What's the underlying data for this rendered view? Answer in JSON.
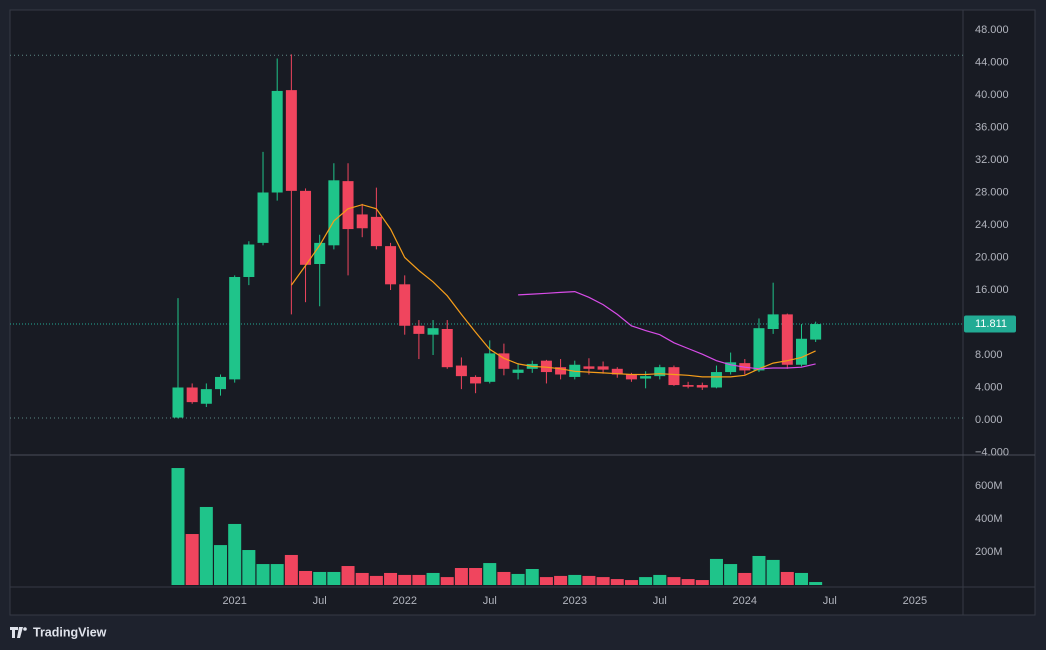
{
  "chart_data": [
    {
      "type": "candlestick",
      "categories": [
        null,
        null,
        null,
        null,
        "2021",
        null,
        null,
        null,
        null,
        null,
        "Jul",
        null,
        null,
        null,
        null,
        null,
        "2022",
        null,
        null,
        null,
        null,
        null,
        "Jul",
        null,
        null,
        null,
        null,
        null,
        "2023",
        null,
        null,
        null,
        null,
        null,
        "Jul",
        null,
        null,
        null,
        null,
        null,
        "2024",
        null,
        null,
        null,
        null,
        null,
        "Jul",
        null,
        null,
        null,
        null,
        null,
        "2025"
      ],
      "open": [
        0.3,
        4.0,
        2.0,
        3.8,
        5.0,
        17.6,
        21.8,
        28.0,
        40.6,
        28.2,
        19.2,
        21.5,
        29.4,
        25.3,
        25.0,
        21.4,
        16.7,
        11.6,
        10.5,
        11.2,
        6.7,
        5.3,
        4.7,
        8.2,
        5.8,
        6.3,
        7.3,
        6.5,
        5.3,
        6.6,
        6.6,
        6.3,
        5.6,
        5.1,
        5.4,
        6.5,
        4.3,
        4.3,
        4.0,
        5.9,
        7.0,
        6.1,
        11.2,
        13.0,
        6.8,
        9.9,
        null,
        null,
        null,
        null,
        null,
        null,
        null
      ],
      "high": [
        15,
        4.5,
        4.5,
        5.6,
        17.8,
        22.0,
        33.0,
        44.5,
        45.0,
        28.5,
        22.8,
        31.6,
        31.6,
        26.6,
        28.6,
        21.8,
        17.8,
        12.3,
        12.3,
        12.3,
        7.7,
        5.5,
        9.8,
        9.4,
        7.0,
        7.3,
        7.4,
        7.5,
        7.3,
        7.6,
        7.2,
        6.5,
        5.8,
        6.0,
        6.8,
        6.7,
        4.7,
        4.6,
        6.7,
        8.3,
        7.5,
        12.5,
        16.9,
        13.1,
        11.8,
        12.1,
        null,
        null,
        null,
        null,
        null,
        null,
        null
      ],
      "low": [
        0.2,
        2.0,
        1.6,
        3.0,
        4.6,
        16.6,
        21.5,
        27.0,
        13.0,
        14.5,
        14.0,
        21.0,
        17.8,
        22.5,
        21.0,
        16.0,
        10.5,
        7.5,
        8.0,
        6.3,
        3.8,
        3.3,
        4.5,
        5.5,
        5.0,
        5.8,
        4.5,
        5.0,
        5.0,
        5.6,
        5.7,
        5.2,
        4.7,
        3.9,
        5.0,
        4.2,
        3.9,
        3.7,
        3.9,
        5.6,
        5.6,
        5.9,
        10.6,
        6.3,
        6.6,
        9.6,
        null,
        null,
        null,
        null,
        null,
        null,
        null
      ],
      "close": [
        4.0,
        2.2,
        3.8,
        5.3,
        17.6,
        21.6,
        28.0,
        40.5,
        28.2,
        19.1,
        21.8,
        29.5,
        23.5,
        23.6,
        21.4,
        16.7,
        11.6,
        10.6,
        11.3,
        6.5,
        5.4,
        4.5,
        8.2,
        6.3,
        6.2,
        6.9,
        5.9,
        5.6,
        6.8,
        6.3,
        6.2,
        5.6,
        5.0,
        5.4,
        6.5,
        4.3,
        4.1,
        4.0,
        5.9,
        7.1,
        6.1,
        11.3,
        13.0,
        6.8,
        10.0,
        11.811,
        null,
        null,
        null,
        null,
        null,
        null,
        null
      ],
      "up_color": "#1fc48a",
      "down_color": "#f0455e",
      "series": [
        {
          "color": "#f59d1a",
          "values": [
            null,
            null,
            null,
            null,
            null,
            null,
            null,
            null,
            16.6,
            19,
            21.5,
            24.5,
            26,
            26.5,
            26,
            23.5,
            20,
            18.4,
            17,
            15.3,
            13,
            10.8,
            8.7,
            7.6,
            6.9,
            6.6,
            6.5,
            6.3,
            6.0,
            5.9,
            5.8,
            5.7,
            5.6,
            5.6,
            5.7,
            5.6,
            5.5,
            5.3,
            5.3,
            5.3,
            5.5,
            6.3,
            7.0,
            7.3,
            7.7,
            8.5,
            null,
            null,
            null,
            null,
            null,
            null,
            null
          ]
        },
        {
          "color": "#d84ce8",
          "values": [
            null,
            null,
            null,
            null,
            null,
            null,
            null,
            null,
            null,
            null,
            null,
            null,
            null,
            null,
            null,
            null,
            null,
            null,
            null,
            null,
            null,
            null,
            null,
            null,
            15.4,
            15.5,
            15.6,
            15.7,
            15.8,
            15.1,
            14.2,
            13.0,
            11.6,
            11.0,
            10.5,
            9.5,
            8.8,
            8.1,
            7.3,
            6.8,
            6.5,
            6.3,
            6.4,
            6.4,
            6.5,
            6.9,
            null,
            null,
            null,
            null,
            null,
            null,
            null
          ]
        }
      ],
      "ylim": [
        -4,
        48
      ],
      "yticks": [
        {
          "value": 48,
          "label": "48.000"
        },
        {
          "value": 44,
          "label": "44.000"
        },
        {
          "value": 40,
          "label": "40.000"
        },
        {
          "value": 36,
          "label": "36.000"
        },
        {
          "value": 32,
          "label": "32.000"
        },
        {
          "value": 28,
          "label": "28.000"
        },
        {
          "value": 24,
          "label": "24.000"
        },
        {
          "value": 20,
          "label": "20.000"
        },
        {
          "value": 16,
          "label": "16.000"
        },
        {
          "value": 12,
          "label": "12.000"
        },
        {
          "value": 8,
          "label": "8.000"
        },
        {
          "value": 4,
          "label": "4.000"
        },
        {
          "value": 0,
          "label": "0.000"
        },
        {
          "value": -4,
          "label": "−4.000"
        }
      ],
      "high_line": 44.9,
      "low_line": 0.25,
      "last_price": 11.811,
      "last_price_color": "#22ab94"
    },
    {
      "type": "bar",
      "values": [
        709000000,
        309000000,
        473000000,
        242000000,
        370000000,
        212000000,
        127000000,
        127000000,
        182000000,
        85000000,
        79000000,
        79000000,
        115000000,
        73000000,
        55000000,
        73000000,
        61000000,
        61000000,
        73000000,
        48000000,
        103000000,
        103000000,
        133000000,
        79000000,
        67000000,
        97000000,
        48000000,
        55000000,
        61000000,
        55000000,
        48000000,
        36000000,
        30000000,
        48000000,
        61000000,
        48000000,
        36000000,
        30000000,
        158000000,
        127000000,
        73000000,
        176000000,
        152000000,
        79000000,
        73000000,
        18000000,
        null,
        null,
        null,
        null,
        null,
        null,
        null
      ],
      "ylim": [
        0,
        788000000
      ],
      "yticks": [
        {
          "value": 600000000,
          "label": "600M"
        },
        {
          "value": 400000000,
          "label": "400M"
        },
        {
          "value": 200000000,
          "label": "200M"
        }
      ]
    }
  ],
  "brand": "TradingView"
}
